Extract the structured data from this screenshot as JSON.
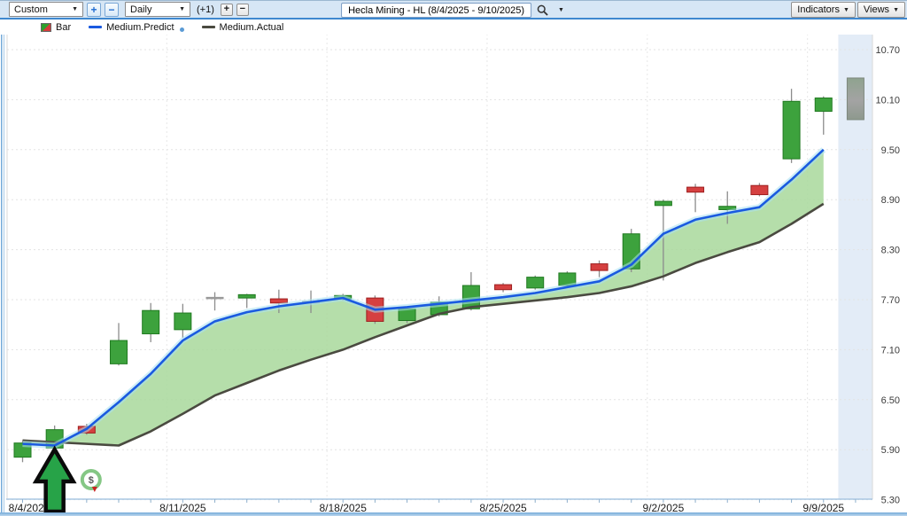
{
  "toolbar": {
    "chart_type": "Custom",
    "timeframe": "Daily",
    "offset_label": "(+1)",
    "plus": "+",
    "minus": "−",
    "offset_plus": "+",
    "offset_minus": "−",
    "search_value": "Hecla Mining - HL (8/4/2025 - 9/10/2025)",
    "indicators": "Indicators",
    "views": "Views"
  },
  "icons": {
    "caret": "▼",
    "dollar": "$"
  },
  "legend": {
    "bar": "Bar",
    "predict": "Medium.Predict",
    "actual": "Medium.Actual"
  },
  "colors": {
    "up": "#3da23d",
    "up_border": "#217a21",
    "down": "#d54040",
    "down_border": "#9e1f1f",
    "doji": "#999999",
    "predict": "#1a5ae0",
    "predict_glow": "#a8e0f0",
    "actual": "#4a4a40",
    "band": "#a8d89b",
    "strip": "#e3ecf7",
    "arrow": "#27a348",
    "grid": "#e3e3e3",
    "axis": "#a9c7e3"
  },
  "chart_data": {
    "type": "candlestick+lines",
    "title": "Hecla Mining - HL (8/4/2025 - 9/10/2025)",
    "y_axis": {
      "min": 5.3,
      "max": 10.7,
      "step": 0.6,
      "ticks": [
        10.7,
        10.1,
        9.5,
        8.9,
        8.3,
        7.7,
        7.1,
        6.5,
        5.9,
        5.3
      ]
    },
    "x_labels": [
      {
        "text": "8/4/2025",
        "index": 0
      },
      {
        "text": "8/11/2025",
        "index": 5
      },
      {
        "text": "8/18/2025",
        "index": 10
      },
      {
        "text": "8/25/2025",
        "index": 15
      },
      {
        "text": "9/2/2025",
        "index": 20
      },
      {
        "text": "9/9/2025",
        "index": 25
      }
    ],
    "candles": [
      {
        "date": "8/4/2025",
        "o": 5.81,
        "h": 6.01,
        "l": 5.75,
        "c": 5.98,
        "kind": "up"
      },
      {
        "date": "8/5/2025",
        "o": 5.92,
        "h": 6.19,
        "l": 5.87,
        "c": 6.14,
        "kind": "up"
      },
      {
        "date": "8/6/2025",
        "o": 6.18,
        "h": 6.21,
        "l": 6.08,
        "c": 6.1,
        "kind": "down"
      },
      {
        "date": "8/7/2025",
        "o": 6.93,
        "h": 7.42,
        "l": 6.91,
        "c": 7.21,
        "kind": "up"
      },
      {
        "date": "8/8/2025",
        "o": 7.29,
        "h": 7.66,
        "l": 7.19,
        "c": 7.57,
        "kind": "up"
      },
      {
        "date": "8/11/2025",
        "o": 7.34,
        "h": 7.65,
        "l": 7.24,
        "c": 7.54,
        "kind": "up"
      },
      {
        "date": "8/12/2025",
        "o": 7.71,
        "h": 7.79,
        "l": 7.57,
        "c": 7.72,
        "kind": "doji"
      },
      {
        "date": "8/13/2025",
        "o": 7.72,
        "h": 7.77,
        "l": 7.6,
        "c": 7.76,
        "kind": "up"
      },
      {
        "date": "8/14/2025",
        "o": 7.71,
        "h": 7.82,
        "l": 7.54,
        "c": 7.66,
        "kind": "down"
      },
      {
        "date": "8/15/2025",
        "o": 7.66,
        "h": 7.81,
        "l": 7.54,
        "c": 7.67,
        "kind": "doji"
      },
      {
        "date": "8/18/2025",
        "o": 7.71,
        "h": 7.77,
        "l": 7.69,
        "c": 7.75,
        "kind": "up"
      },
      {
        "date": "8/19/2025",
        "o": 7.72,
        "h": 7.75,
        "l": 7.41,
        "c": 7.44,
        "kind": "down"
      },
      {
        "date": "8/20/2025",
        "o": 7.45,
        "h": 7.62,
        "l": 7.42,
        "c": 7.59,
        "kind": "up"
      },
      {
        "date": "8/21/2025",
        "o": 7.52,
        "h": 7.74,
        "l": 7.5,
        "c": 7.67,
        "kind": "up"
      },
      {
        "date": "8/22/2025",
        "o": 7.59,
        "h": 8.03,
        "l": 7.57,
        "c": 7.87,
        "kind": "up"
      },
      {
        "date": "8/25/2025",
        "o": 7.88,
        "h": 7.9,
        "l": 7.79,
        "c": 7.82,
        "kind": "down"
      },
      {
        "date": "8/26/2025",
        "o": 7.84,
        "h": 7.99,
        "l": 7.82,
        "c": 7.97,
        "kind": "up"
      },
      {
        "date": "8/27/2025",
        "o": 7.87,
        "h": 8.04,
        "l": 7.84,
        "c": 8.02,
        "kind": "up"
      },
      {
        "date": "8/28/2025",
        "o": 8.13,
        "h": 8.17,
        "l": 7.97,
        "c": 8.05,
        "kind": "down"
      },
      {
        "date": "8/29/2025",
        "o": 8.07,
        "h": 8.55,
        "l": 8.03,
        "c": 8.49,
        "kind": "up"
      },
      {
        "date": "9/2/2025",
        "o": 8.83,
        "h": 8.9,
        "l": 7.93,
        "c": 8.88,
        "kind": "up"
      },
      {
        "date": "9/3/2025",
        "o": 9.05,
        "h": 9.09,
        "l": 8.75,
        "c": 8.99,
        "kind": "down"
      },
      {
        "date": "9/4/2025",
        "o": 8.78,
        "h": 9.0,
        "l": 8.61,
        "c": 8.82,
        "kind": "up"
      },
      {
        "date": "9/5/2025",
        "o": 9.07,
        "h": 9.1,
        "l": 8.94,
        "c": 8.96,
        "kind": "down"
      },
      {
        "date": "9/8/2025",
        "o": 9.39,
        "h": 10.23,
        "l": 9.34,
        "c": 10.08,
        "kind": "up"
      },
      {
        "date": "9/9/2025",
        "o": 9.96,
        "h": 10.14,
        "l": 9.68,
        "c": 10.12,
        "kind": "up"
      },
      {
        "date": "9/10/2025",
        "o": 9.86,
        "h": 10.36,
        "l": 9.86,
        "c": 10.36,
        "kind": "projection"
      }
    ],
    "series": [
      {
        "name": "Medium.Predict",
        "color": "#1a5ae0",
        "values": [
          5.97,
          5.95,
          6.15,
          6.47,
          6.81,
          7.21,
          7.44,
          7.55,
          7.62,
          7.67,
          7.72,
          7.58,
          7.61,
          7.65,
          7.69,
          7.73,
          7.78,
          7.85,
          7.92,
          8.12,
          8.49,
          8.66,
          8.74,
          8.81,
          9.14,
          9.5
        ]
      },
      {
        "name": "Medium.Actual",
        "color": "#4a4a40",
        "values": [
          6.01,
          5.99,
          5.97,
          5.95,
          6.12,
          6.33,
          6.55,
          6.7,
          6.85,
          6.98,
          7.1,
          7.25,
          7.39,
          7.53,
          7.61,
          7.65,
          7.69,
          7.73,
          7.78,
          7.86,
          7.98,
          8.14,
          8.27,
          8.39,
          8.61,
          8.85
        ]
      }
    ],
    "annotations": {
      "arrow": {
        "type": "up-arrow",
        "at_index": 1
      },
      "badge": {
        "type": "dollar-signal",
        "symbol": "$",
        "at_index": 2
      }
    }
  }
}
